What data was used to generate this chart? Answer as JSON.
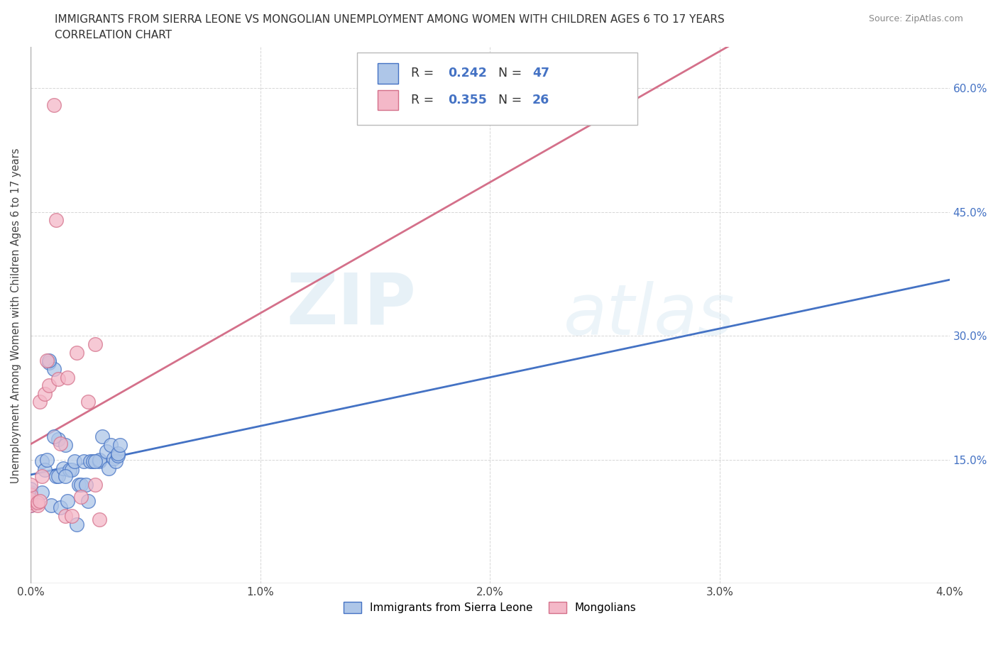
{
  "title_line1": "IMMIGRANTS FROM SIERRA LEONE VS MONGOLIAN UNEMPLOYMENT AMONG WOMEN WITH CHILDREN AGES 6 TO 17 YEARS",
  "title_line2": "CORRELATION CHART",
  "source_text": "Source: ZipAtlas.com",
  "ylabel": "Unemployment Among Women with Children Ages 6 to 17 years",
  "xlim": [
    0.0,
    0.04
  ],
  "ylim": [
    0.0,
    0.65
  ],
  "xticks": [
    0.0,
    0.01,
    0.02,
    0.03,
    0.04
  ],
  "xticklabels": [
    "0.0%",
    "1.0%",
    "2.0%",
    "3.0%",
    "4.0%"
  ],
  "yticks": [
    0.0,
    0.15,
    0.3,
    0.45,
    0.6
  ],
  "right_yticks": [
    0.15,
    0.3,
    0.45,
    0.6
  ],
  "right_yticklabels": [
    "15.0%",
    "30.0%",
    "45.0%",
    "60.0%"
  ],
  "sierra_leone_color": "#aec6e8",
  "mongolian_color": "#f4b8c8",
  "sierra_leone_edge": "#4472c4",
  "mongolian_edge": "#d4708a",
  "trendline_sierra": "#4472c4",
  "trendline_mongolian": "#d4708a",
  "watermark_zip": "ZIP",
  "watermark_atlas": "atlas",
  "legend_R_sierra": "0.242",
  "legend_N_sierra": "47",
  "legend_R_mongolian": "0.355",
  "legend_N_mongolian": "26",
  "sierra_leone_x": [
    0.0,
    0.0,
    0.0,
    0.0,
    0.0,
    0.0,
    0.0,
    0.0005,
    0.0005,
    0.0006,
    0.0007,
    0.0008,
    0.0009,
    0.001,
    0.0011,
    0.0012,
    0.0012,
    0.0013,
    0.0014,
    0.0015,
    0.0016,
    0.0017,
    0.0018,
    0.0019,
    0.002,
    0.0021,
    0.0022,
    0.0023,
    0.0025,
    0.0026,
    0.0027,
    0.003,
    0.003,
    0.0031,
    0.0033,
    0.0034,
    0.0035,
    0.0036,
    0.0037,
    0.0038,
    0.0038,
    0.0039,
    0.0028,
    0.0024,
    0.0015,
    0.001,
    0.0008
  ],
  "sierra_leone_y": [
    0.095,
    0.1,
    0.1,
    0.105,
    0.108,
    0.11,
    0.115,
    0.11,
    0.148,
    0.138,
    0.15,
    0.268,
    0.095,
    0.26,
    0.13,
    0.175,
    0.13,
    0.092,
    0.14,
    0.168,
    0.1,
    0.138,
    0.138,
    0.148,
    0.072,
    0.12,
    0.12,
    0.148,
    0.1,
    0.148,
    0.148,
    0.148,
    0.15,
    0.178,
    0.16,
    0.14,
    0.168,
    0.152,
    0.148,
    0.155,
    0.158,
    0.168,
    0.148,
    0.12,
    0.13,
    0.178,
    0.27
  ],
  "mongolian_x": [
    0.0,
    0.0,
    0.0,
    0.0,
    0.0,
    0.0003,
    0.0003,
    0.0004,
    0.0004,
    0.0005,
    0.0006,
    0.0007,
    0.0008,
    0.001,
    0.0011,
    0.0012,
    0.0013,
    0.0015,
    0.0016,
    0.0018,
    0.002,
    0.0022,
    0.0025,
    0.0028,
    0.0028,
    0.003
  ],
  "mongolian_y": [
    0.095,
    0.098,
    0.102,
    0.108,
    0.12,
    0.095,
    0.098,
    0.1,
    0.22,
    0.13,
    0.23,
    0.27,
    0.24,
    0.58,
    0.44,
    0.248,
    0.17,
    0.082,
    0.25,
    0.082,
    0.28,
    0.105,
    0.22,
    0.29,
    0.12,
    0.078
  ]
}
